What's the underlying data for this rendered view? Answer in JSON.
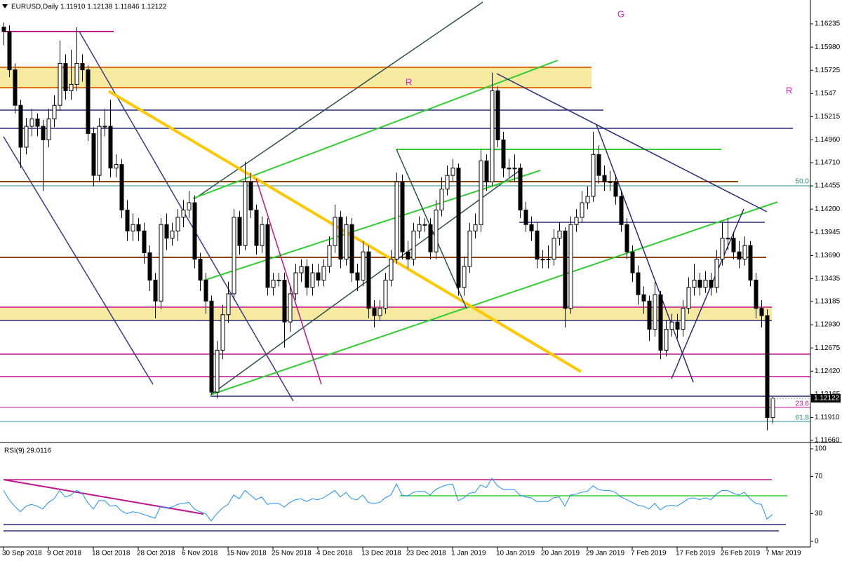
{
  "chart_data": {
    "type": "candlestick",
    "title": "EURUSD,Daily  1.11910 1.12138 1.11846 1.12122",
    "categories": [
      "30 Sep 2018",
      null,
      null,
      null,
      null,
      null,
      null,
      null,
      "9 Oct 2018",
      null,
      null,
      null,
      null,
      null,
      null,
      null,
      "18 Oct 2018",
      null,
      null,
      null,
      null,
      null,
      null,
      null,
      "28 Oct 2018",
      null,
      null,
      null,
      null,
      null,
      null,
      null,
      "6 Nov 2018",
      null,
      null,
      null,
      null,
      null,
      null,
      null,
      "15 Nov 2018",
      null,
      null,
      null,
      null,
      null,
      null,
      null,
      "25 Nov 2018",
      null,
      null,
      null,
      null,
      null,
      null,
      null,
      "4 Dec 2018",
      null,
      null,
      null,
      null,
      null,
      null,
      null,
      "13 Dec 2018",
      null,
      null,
      null,
      null,
      null,
      null,
      null,
      "23 Dec 2018",
      null,
      null,
      null,
      null,
      null,
      null,
      null,
      "1 Jan 2019",
      null,
      null,
      null,
      null,
      null,
      null,
      null,
      "10 Jan 2019",
      null,
      null,
      null,
      null,
      null,
      null,
      null,
      "20 Jan 2019",
      null,
      null,
      null,
      null,
      null,
      null,
      null,
      "29 Jan 2019",
      null,
      null,
      null,
      null,
      null,
      null,
      null,
      "7 Feb 2019",
      null,
      null,
      null,
      null,
      null,
      null,
      null,
      "17 Feb 2019",
      null,
      null,
      null,
      null,
      null,
      null,
      null,
      "26 Feb 2019",
      null,
      null,
      null,
      null,
      null,
      null,
      null,
      "7 Mar 2019",
      null
    ],
    "open": [
      1.162,
      1.1615,
      1.1573,
      1.1534,
      1.1488,
      1.1511,
      1.1519,
      1.1511,
      1.1496,
      1.1519,
      1.1534,
      1.158,
      1.155,
      1.1557,
      1.158,
      1.1573,
      1.1503,
      1.1457,
      1.1511,
      1.1511,
      1.1465,
      1.1469,
      1.1419,
      1.1396,
      1.1403,
      1.1396,
      1.1372,
      1.1342,
      1.1319,
      1.1403,
      1.1388,
      1.1396,
      1.1411,
      1.1419,
      1.1427,
      1.1365,
      1.1342,
      1.1319,
      1.1219,
      1.1265,
      1.1304,
      1.1327,
      1.1411,
      1.138,
      1.145,
      1.1419,
      1.138,
      1.1403,
      1.1334,
      1.1342,
      1.1342,
      1.1296,
      1.1327,
      1.135,
      1.1357,
      1.1334,
      1.135,
      1.1342,
      1.1357,
      1.138,
      1.1411,
      1.1365,
      1.1403,
      1.135,
      1.1342,
      1.1373,
      1.1311,
      1.1303,
      1.1311,
      1.1342,
      1.1365,
      1.145,
      1.1373,
      1.1365,
      1.1396,
      1.1403,
      1.1403,
      1.1373,
      1.1419,
      1.1442,
      1.1457,
      1.1465,
      1.1334,
      1.1357,
      1.1396,
      1.1403,
      1.1473,
      1.145,
      1.155,
      1.1496,
      1.1465,
      1.1465,
      1.1465,
      1.1419,
      1.1403,
      1.1396,
      1.1365,
      1.1365,
      1.1365,
      1.1388,
      1.1396,
      1.1311,
      1.1403,
      1.1411,
      1.1427,
      1.1434,
      1.148,
      1.1457,
      1.145,
      1.145,
      1.1434,
      1.1403,
      1.1373,
      1.135,
      1.1326,
      1.1319,
      1.1288,
      1.1326,
      1.1265,
      1.1288,
      1.1296,
      1.1288,
      1.1311,
      1.1334,
      1.1342,
      1.1334,
      1.1342,
      1.1334,
      1.1365,
      1.1388,
      1.1388,
      1.1373,
      1.1365,
      1.138,
      1.1342,
      1.1311,
      1.1303,
      1.1191
    ],
    "high": [
      1.1625,
      1.1622,
      1.158,
      1.154,
      1.152,
      1.153,
      1.1525,
      1.1518,
      1.153,
      1.1545,
      1.1605,
      1.159,
      1.1595,
      1.162,
      1.159,
      1.1578,
      1.151,
      1.152,
      1.153,
      1.154,
      1.148,
      1.1475,
      1.143,
      1.1415,
      1.141,
      1.1405,
      1.138,
      1.135,
      1.141,
      1.1415,
      1.1405,
      1.142,
      1.143,
      1.144,
      1.1435,
      1.1372,
      1.135,
      1.1325,
      1.1275,
      1.1315,
      1.134,
      1.142,
      1.1418,
      1.1472,
      1.146,
      1.1425,
      1.1412,
      1.141,
      1.135,
      1.135,
      1.135,
      1.1335,
      1.136,
      1.1365,
      1.1365,
      1.136,
      1.136,
      1.1365,
      1.139,
      1.1425,
      1.1418,
      1.1412,
      1.141,
      1.136,
      1.1385,
      1.138,
      1.132,
      1.132,
      1.135,
      1.1375,
      1.146,
      1.1458,
      1.1385,
      1.1405,
      1.1412,
      1.141,
      1.141,
      1.143,
      1.1455,
      1.1468,
      1.1475,
      1.147,
      1.1368,
      1.1405,
      1.1415,
      1.1485,
      1.148,
      1.157,
      1.1555,
      1.1505,
      1.1475,
      1.148,
      1.147,
      1.1428,
      1.1412,
      1.1405,
      1.1375,
      1.138,
      1.1398,
      1.1405,
      1.14,
      1.1412,
      1.142,
      1.144,
      1.1445,
      1.1505,
      1.149,
      1.1468,
      1.1462,
      1.1458,
      1.144,
      1.141,
      1.138,
      1.1358,
      1.1335,
      1.1325,
      1.134,
      1.133,
      1.1298,
      1.1305,
      1.1305,
      1.132,
      1.1345,
      1.136,
      1.135,
      1.1352,
      1.135,
      1.1375,
      1.1405,
      1.141,
      1.1395,
      1.1385,
      1.139,
      1.1385,
      1.135,
      1.132,
      1.131,
      1.12138
    ],
    "low": [
      1.16,
      1.1565,
      1.1525,
      1.1465,
      1.148,
      1.15,
      1.15,
      1.144,
      1.1488,
      1.151,
      1.1528,
      1.154,
      1.154,
      1.155,
      1.156,
      1.1495,
      1.1445,
      1.145,
      1.15,
      1.1455,
      1.1455,
      1.141,
      1.1385,
      1.1385,
      1.1385,
      1.136,
      1.133,
      1.13,
      1.131,
      1.1375,
      1.138,
      1.1385,
      1.14,
      1.141,
      1.1355,
      1.133,
      1.1305,
      1.1216,
      1.1212,
      1.1255,
      1.1295,
      1.132,
      1.137,
      1.1375,
      1.141,
      1.137,
      1.1372,
      1.1325,
      1.1325,
      1.1335,
      1.1268,
      1.1285,
      1.132,
      1.134,
      1.1325,
      1.1325,
      1.1335,
      1.1335,
      1.135,
      1.1372,
      1.1355,
      1.1358,
      1.134,
      1.133,
      1.1335,
      1.13,
      1.129,
      1.1298,
      1.1305,
      1.1335,
      1.136,
      1.1365,
      1.1355,
      1.1358,
      1.1388,
      1.1395,
      1.1365,
      1.1365,
      1.1412,
      1.1435,
      1.145,
      1.1325,
      1.1325,
      1.135,
      1.1388,
      1.1395,
      1.144,
      1.1445,
      1.1488,
      1.1455,
      1.1455,
      1.145,
      1.141,
      1.1395,
      1.1385,
      1.1355,
      1.1355,
      1.1355,
      1.1358,
      1.138,
      1.129,
      1.1305,
      1.1395,
      1.1405,
      1.142,
      1.1428,
      1.1448,
      1.144,
      1.144,
      1.1425,
      1.1395,
      1.1365,
      1.134,
      1.1315,
      1.1305,
      1.1275,
      1.128,
      1.1255,
      1.1258,
      1.128,
      1.1278,
      1.128,
      1.1305,
      1.1325,
      1.1325,
      1.1328,
      1.1325,
      1.1328,
      1.1358,
      1.1375,
      1.1365,
      1.1355,
      1.1358,
      1.1335,
      1.13,
      1.129,
      1.1177,
      1.11846
    ],
    "close": [
      1.1615,
      1.1573,
      1.1534,
      1.1488,
      1.1511,
      1.1519,
      1.1511,
      1.1496,
      1.1519,
      1.1534,
      1.158,
      1.155,
      1.1557,
      1.158,
      1.1573,
      1.1503,
      1.1457,
      1.1511,
      1.1511,
      1.1465,
      1.1469,
      1.1419,
      1.1396,
      1.1403,
      1.1396,
      1.1372,
      1.1342,
      1.1319,
      1.1403,
      1.1388,
      1.1396,
      1.1411,
      1.1419,
      1.1427,
      1.1365,
      1.1342,
      1.1319,
      1.1219,
      1.1265,
      1.1304,
      1.1327,
      1.1411,
      1.138,
      1.145,
      1.1419,
      1.138,
      1.1403,
      1.1334,
      1.1342,
      1.1342,
      1.1296,
      1.1327,
      1.135,
      1.1357,
      1.1334,
      1.135,
      1.1342,
      1.1357,
      1.138,
      1.1411,
      1.1365,
      1.1403,
      1.135,
      1.1342,
      1.1373,
      1.1311,
      1.1303,
      1.1311,
      1.1342,
      1.1365,
      1.145,
      1.1373,
      1.1365,
      1.1396,
      1.1403,
      1.1403,
      1.1373,
      1.1419,
      1.1442,
      1.1457,
      1.1465,
      1.1334,
      1.1357,
      1.1396,
      1.1403,
      1.1473,
      1.145,
      1.155,
      1.1496,
      1.1465,
      1.1465,
      1.1465,
      1.1419,
      1.1403,
      1.1396,
      1.1365,
      1.1365,
      1.1365,
      1.1388,
      1.1396,
      1.1311,
      1.1403,
      1.1411,
      1.1427,
      1.1434,
      1.148,
      1.1457,
      1.145,
      1.145,
      1.1434,
      1.1403,
      1.1373,
      1.135,
      1.1326,
      1.1319,
      1.1288,
      1.1326,
      1.1265,
      1.1288,
      1.1296,
      1.1288,
      1.1311,
      1.1334,
      1.1342,
      1.1334,
      1.1342,
      1.1334,
      1.1365,
      1.1388,
      1.1388,
      1.1373,
      1.1365,
      1.138,
      1.1342,
      1.1311,
      1.1303,
      1.1191,
      1.12122
    ],
    "ylim": [
      1.11644,
      1.16474
    ],
    "yticks": [
      1.16235,
      {
        "value": 1.1598,
        "label": "1.15980"
      },
      1.15725,
      1.1547,
      1.15215,
      {
        "value": 1.1496,
        "label": "1.14960"
      },
      {
        "value": 1.1471,
        "label": "1.14710"
      },
      1.14455,
      {
        "value": 1.142,
        "label": "1.14200"
      },
      1.13945,
      {
        "value": 1.1369,
        "label": "1.13690"
      },
      1.13435,
      1.13185,
      {
        "value": 1.1293,
        "label": "1.12930"
      },
      1.12675,
      {
        "value": 1.1242,
        "label": "1.12420"
      },
      1.12165,
      {
        "value": 1.1191,
        "label": "1.11910"
      },
      {
        "value": 1.1166,
        "label": "1.11660"
      }
    ],
    "current_price": {
      "value": 1.12122,
      "label": "1.12122"
    },
    "annotations": [
      "R",
      "G",
      "R"
    ],
    "fib_labels": [
      "50.0",
      "23.6",
      "61.8"
    ],
    "rsi": {
      "label": "RSI(9) 29.0116",
      "values": [
        55,
        45,
        38,
        32,
        38,
        40,
        38,
        35,
        42,
        46,
        55,
        48,
        50,
        55,
        52,
        42,
        35,
        44,
        44,
        38,
        39,
        33,
        30,
        32,
        31,
        29,
        27,
        25,
        38,
        36,
        37,
        40,
        41,
        42,
        35,
        32,
        30,
        22,
        30,
        36,
        40,
        50,
        46,
        55,
        50,
        45,
        48,
        40,
        41,
        41,
        37,
        42,
        45,
        46,
        43,
        46,
        45,
        47,
        51,
        55,
        48,
        53,
        46,
        45,
        50,
        42,
        41,
        42,
        47,
        50,
        62,
        50,
        49,
        53,
        54,
        54,
        50,
        56,
        59,
        61,
        62,
        44,
        47,
        52,
        53,
        61,
        58,
        68,
        60,
        56,
        56,
        56,
        50,
        48,
        47,
        43,
        43,
        43,
        47,
        48,
        38,
        50,
        51,
        53,
        54,
        60,
        56,
        55,
        55,
        53,
        48,
        45,
        42,
        39,
        38,
        35,
        41,
        34,
        38,
        39,
        38,
        42,
        46,
        47,
        45,
        47,
        45,
        51,
        55,
        55,
        52,
        50,
        53,
        46,
        41,
        40,
        24,
        29.0116
      ],
      "ylim": [
        -5.3,
        105.3
      ],
      "yticks": [
        0,
        30,
        70,
        100
      ]
    }
  }
}
